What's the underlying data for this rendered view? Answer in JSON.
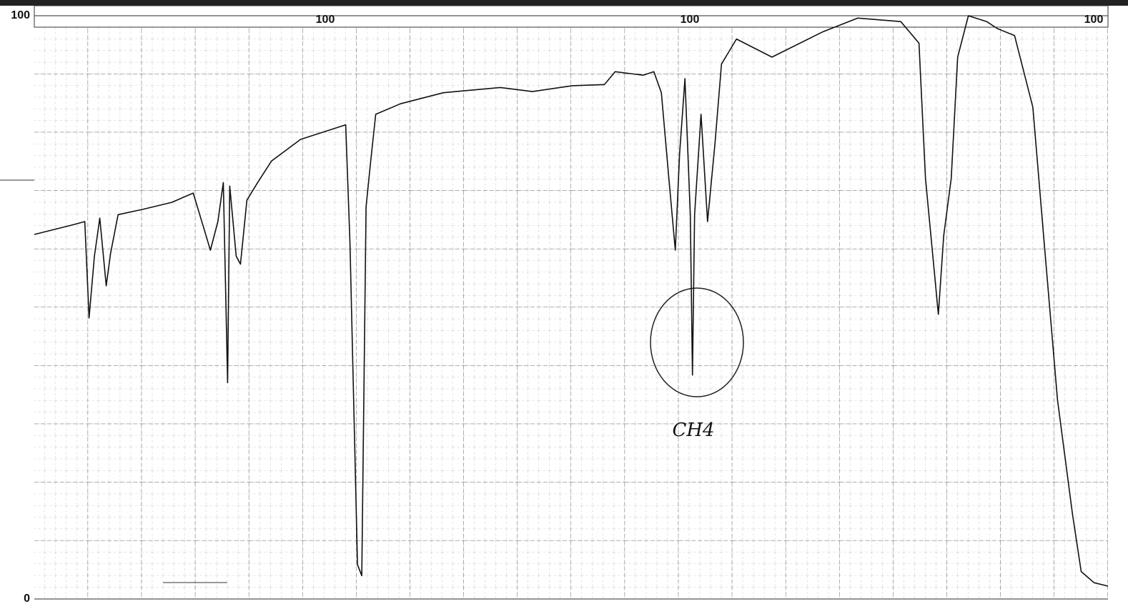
{
  "chart_data": {
    "type": "line",
    "x": [
      0,
      3.5,
      4.7,
      5.1,
      5.6,
      6.1,
      6.7,
      7.1,
      7.8,
      10.1,
      12.8,
      14.8,
      15.8,
      16.4,
      17.1,
      17.6,
      18.0,
      18.2,
      18.8,
      19.2,
      19.8,
      20.8,
      22.1,
      24.8,
      29.0,
      29.4,
      30.1,
      30.5,
      30.9,
      31.3,
      31.8,
      34.1,
      38.1,
      43.4,
      46.4,
      50.1,
      53.1,
      54.1,
      56.7,
      57.7,
      58.4,
      59.1,
      59.7,
      60.1,
      60.6,
      61.1,
      61.3,
      61.5,
      62.1,
      62.7,
      63.4,
      64.0,
      65.4,
      68.7,
      73.4,
      76.7,
      80.7,
      82.4,
      83.0,
      84.2,
      84.7,
      85.4,
      86.0,
      87.0,
      88.7,
      89.7,
      91.3,
      93.0,
      94.0,
      95.3,
      96.7,
      97.5,
      98.7,
      100
    ],
    "values": [
      62.5,
      64.1,
      64.7,
      48.2,
      58.8,
      65.3,
      53.7,
      59.2,
      65.9,
      66.8,
      68.0,
      69.6,
      63.5,
      59.8,
      64.7,
      71.4,
      37.1,
      70.8,
      58.8,
      57.4,
      68.4,
      71.4,
      75.1,
      78.8,
      81.3,
      61.0,
      5.9,
      4.0,
      67.2,
      74.5,
      83.1,
      84.9,
      86.8,
      87.7,
      87.0,
      88.0,
      88.2,
      90.4,
      89.8,
      90.4,
      86.8,
      72.1,
      59.8,
      76.3,
      89.2,
      65.9,
      38.4,
      65.9,
      83.1,
      64.7,
      78.2,
      91.7,
      96.0,
      92.9,
      97.2,
      99.6,
      99.0,
      95.3,
      72.1,
      48.8,
      62.3,
      72.1,
      92.9,
      100,
      99.0,
      97.8,
      96.6,
      84.3,
      62.3,
      34.1,
      14.5,
      4.7,
      2.8,
      2.2
    ],
    "color": "#111111",
    "xlim": [
      0,
      100
    ],
    "ylim": [
      0,
      100
    ],
    "yticks": [
      0,
      100
    ],
    "top_labels": [
      "100",
      "100",
      "100"
    ],
    "annotation": "CH4",
    "grid": true
  }
}
